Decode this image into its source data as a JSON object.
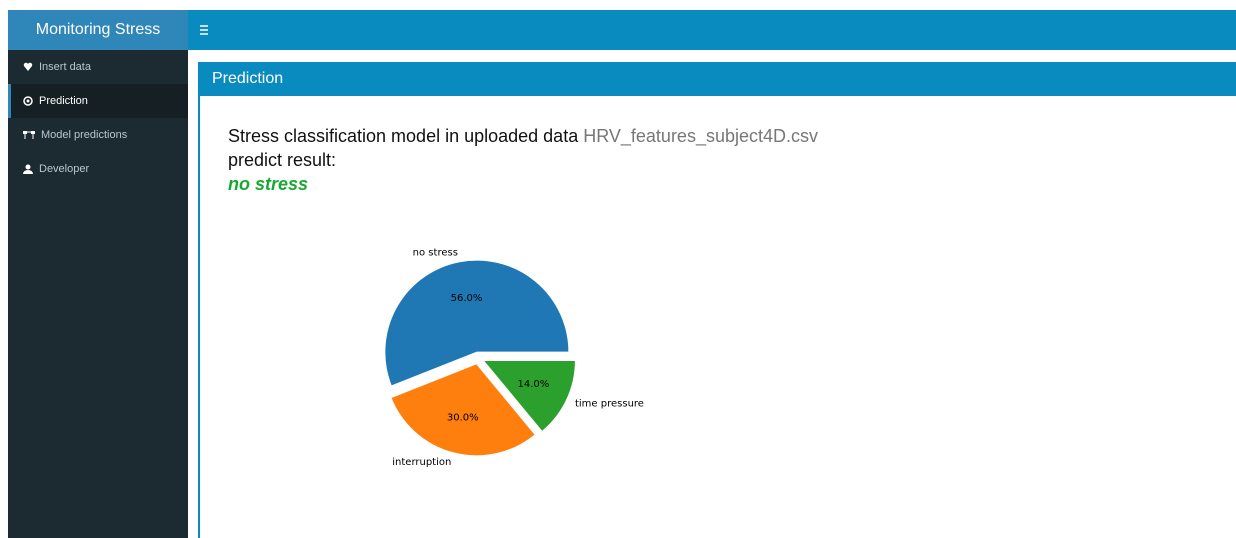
{
  "sidebar": {
    "title": "Monitoring Stress",
    "items": [
      "Insert data",
      "Prediction",
      "Model predictions",
      "Developer"
    ],
    "active": 1
  },
  "box": {
    "title": "Prediction"
  },
  "content": {
    "line1": "Stress classification model in uploaded data",
    "file": "HRV_features_subject4D.csv",
    "line2": "predict result:",
    "result": "no stress"
  },
  "chart_data": {
    "type": "pie",
    "categories": [
      "no stress",
      "interruption",
      "time pressure"
    ],
    "values": [
      56,
      30,
      14
    ],
    "value_labels": [
      "56.0%",
      "30.0%",
      "14.0%"
    ],
    "colors": [
      "#1f77b4",
      "#ff7f0e",
      "#2ca02c"
    ]
  }
}
